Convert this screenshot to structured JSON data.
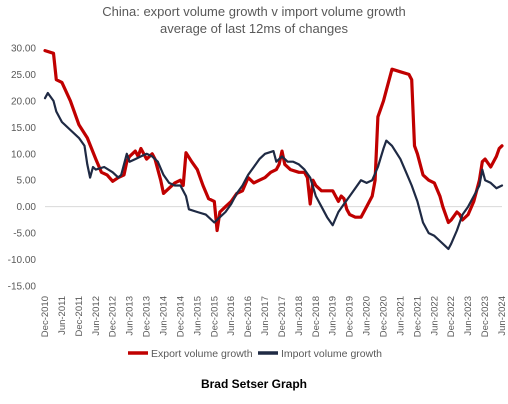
{
  "chart_data": {
    "type": "line",
    "title_line1": "China: export volume growth v import volume growth",
    "title_line2": "average of last 12ms of changes",
    "xlabel": "",
    "ylabel": "",
    "ylim": [
      -15,
      30
    ],
    "y_ticks": [
      "30.00",
      "25.00",
      "20.00",
      "15.00",
      "10.00",
      "5.00",
      "0.00",
      "-5.00",
      "-10.00",
      "-15.00"
    ],
    "y_tick_values": [
      30,
      25,
      20,
      15,
      10,
      5,
      0,
      -5,
      -10,
      -15
    ],
    "x_start": "Dec-2010",
    "x_end": "Jun-2024",
    "x_ticks": [
      "Dec-2010",
      "Jun-2011",
      "Dec-2011",
      "Jun-2012",
      "Dec-2012",
      "Jun-2013",
      "Dec-2013",
      "Jun-2014",
      "Dec-2014",
      "Jun-2015",
      "Dec-2015",
      "Jun-2016",
      "Dec-2016",
      "Jun-2017",
      "Dec-2017",
      "Jun-2018",
      "Dec-2018",
      "Jun-2019",
      "Dec-2019",
      "Jun-2020",
      "Dec-2020",
      "Jun-2021",
      "Dec-2021",
      "Jun-2022",
      "Dec-2022",
      "Jun-2023",
      "Dec-2023",
      "Jun-2024"
    ],
    "grid": false,
    "legend_position": "bottom",
    "series": [
      {
        "name": "Export volume growth",
        "color": "#C00000",
        "points": [
          [
            "Dec-2010",
            29.5
          ],
          [
            "Mar-2011",
            29.0
          ],
          [
            "Apr-2011",
            24.0
          ],
          [
            "Jun-2011",
            23.5
          ],
          [
            "Sep-2011",
            20.0
          ],
          [
            "Dec-2011",
            15.5
          ],
          [
            "Mar-2012",
            13.0
          ],
          [
            "Jun-2012",
            9.0
          ],
          [
            "Aug-2012",
            6.5
          ],
          [
            "Oct-2012",
            6.0
          ],
          [
            "Dec-2012",
            4.8
          ],
          [
            "Feb-2013",
            5.5
          ],
          [
            "Apr-2013",
            6.0
          ],
          [
            "May-2013",
            8.5
          ],
          [
            "Jun-2013",
            9.5
          ],
          [
            "Aug-2013",
            10.5
          ],
          [
            "Sep-2013",
            9.5
          ],
          [
            "Oct-2013",
            11.0
          ],
          [
            "Dec-2013",
            9.0
          ],
          [
            "Feb-2014",
            10.0
          ],
          [
            "Mar-2014",
            9.0
          ],
          [
            "May-2014",
            5.0
          ],
          [
            "Jun-2014",
            2.5
          ],
          [
            "Aug-2014",
            3.5
          ],
          [
            "Oct-2014",
            4.5
          ],
          [
            "Dec-2014",
            5.0
          ],
          [
            "Jan-2015",
            4.0
          ],
          [
            "Feb-2015",
            10.2
          ],
          [
            "Apr-2015",
            8.5
          ],
          [
            "Jun-2015",
            7.0
          ],
          [
            "Aug-2015",
            4.0
          ],
          [
            "Oct-2015",
            1.5
          ],
          [
            "Dec-2015",
            1.0
          ],
          [
            "Jan-2016",
            -4.5
          ],
          [
            "Feb-2016",
            -1.0
          ],
          [
            "Apr-2016",
            0.0
          ],
          [
            "Jun-2016",
            1.0
          ],
          [
            "Aug-2016",
            2.5
          ],
          [
            "Oct-2016",
            3.0
          ],
          [
            "Dec-2016",
            5.5
          ],
          [
            "Feb-2017",
            4.5
          ],
          [
            "Apr-2017",
            5.0
          ],
          [
            "Jun-2017",
            5.5
          ],
          [
            "Aug-2017",
            6.5
          ],
          [
            "Oct-2017",
            7.0
          ],
          [
            "Nov-2017",
            8.0
          ],
          [
            "Dec-2017",
            10.5
          ],
          [
            "Jan-2018",
            8.0
          ],
          [
            "Mar-2018",
            7.0
          ],
          [
            "Jun-2018",
            6.5
          ],
          [
            "Aug-2018",
            6.5
          ],
          [
            "Sep-2018",
            5.5
          ],
          [
            "Oct-2018",
            0.5
          ],
          [
            "Nov-2018",
            5.0
          ],
          [
            "Dec-2018",
            4.0
          ],
          [
            "Feb-2019",
            3.0
          ],
          [
            "Apr-2019",
            3.0
          ],
          [
            "Jun-2019",
            3.0
          ],
          [
            "Aug-2019",
            1.0
          ],
          [
            "Sep-2019",
            2.0
          ],
          [
            "Oct-2019",
            1.5
          ],
          [
            "Nov-2019",
            -0.5
          ],
          [
            "Dec-2019",
            -1.5
          ],
          [
            "Feb-2020",
            -2.0
          ],
          [
            "Apr-2020",
            -2.0
          ],
          [
            "Jun-2020",
            0.0
          ],
          [
            "Aug-2020",
            2.0
          ],
          [
            "Sep-2020",
            5.0
          ],
          [
            "Oct-2020",
            17.0
          ],
          [
            "Dec-2020",
            20.0
          ],
          [
            "Jan-2021",
            22.0
          ],
          [
            "Mar-2021",
            26.0
          ],
          [
            "Jun-2021",
            25.5
          ],
          [
            "Sep-2021",
            25.0
          ],
          [
            "Oct-2021",
            24.0
          ],
          [
            "Nov-2021",
            11.5
          ],
          [
            "Dec-2021",
            10.0
          ],
          [
            "Feb-2022",
            6.0
          ],
          [
            "Apr-2022",
            5.0
          ],
          [
            "Jun-2022",
            4.5
          ],
          [
            "Aug-2022",
            2.0
          ],
          [
            "Sep-2022",
            0.0
          ],
          [
            "Nov-2022",
            -3.0
          ],
          [
            "Dec-2022",
            -2.5
          ],
          [
            "Feb-2023",
            -1.0
          ],
          [
            "Mar-2023",
            -1.5
          ],
          [
            "Apr-2023",
            -2.5
          ],
          [
            "Jun-2023",
            -1.5
          ],
          [
            "Aug-2023",
            1.0
          ],
          [
            "Oct-2023",
            5.0
          ],
          [
            "Nov-2023",
            8.5
          ],
          [
            "Dec-2023",
            9.0
          ],
          [
            "Feb-2024",
            7.5
          ],
          [
            "Apr-2024",
            9.5
          ],
          [
            "May-2024",
            11.0
          ],
          [
            "Jun-2024",
            11.5
          ]
        ]
      },
      {
        "name": "Import volume growth",
        "color": "#1F2A44",
        "points": [
          [
            "Dec-2010",
            20.5
          ],
          [
            "Jan-2011",
            21.5
          ],
          [
            "Mar-2011",
            20.0
          ],
          [
            "Apr-2011",
            18.0
          ],
          [
            "Jun-2011",
            16.0
          ],
          [
            "Sep-2011",
            14.5
          ],
          [
            "Dec-2011",
            13.0
          ],
          [
            "Feb-2012",
            11.5
          ],
          [
            "Mar-2012",
            8.0
          ],
          [
            "Apr-2012",
            5.5
          ],
          [
            "May-2012",
            7.5
          ],
          [
            "Jun-2012",
            7.0
          ],
          [
            "Sep-2012",
            7.5
          ],
          [
            "Dec-2012",
            6.5
          ],
          [
            "Feb-2013",
            5.5
          ],
          [
            "Mar-2013",
            6.0
          ],
          [
            "May-2013",
            10.0
          ],
          [
            "Jun-2013",
            8.5
          ],
          [
            "Aug-2013",
            9.0
          ],
          [
            "Oct-2013",
            9.5
          ],
          [
            "Dec-2013",
            10.0
          ],
          [
            "Feb-2014",
            9.5
          ],
          [
            "Apr-2014",
            8.5
          ],
          [
            "Jun-2014",
            6.0
          ],
          [
            "Aug-2014",
            4.5
          ],
          [
            "Oct-2014",
            4.0
          ],
          [
            "Dec-2014",
            4.0
          ],
          [
            "Feb-2015",
            2.0
          ],
          [
            "Mar-2015",
            -0.5
          ],
          [
            "Jun-2015",
            -1.0
          ],
          [
            "Sep-2015",
            -1.5
          ],
          [
            "Dec-2015",
            -3.0
          ],
          [
            "Feb-2016",
            -2.0
          ],
          [
            "Apr-2016",
            -1.0
          ],
          [
            "Jun-2016",
            0.5
          ],
          [
            "Aug-2016",
            2.5
          ],
          [
            "Oct-2016",
            4.0
          ],
          [
            "Dec-2016",
            6.0
          ],
          [
            "Feb-2017",
            7.5
          ],
          [
            "Apr-2017",
            9.0
          ],
          [
            "Jun-2017",
            10.0
          ],
          [
            "Sep-2017",
            10.5
          ],
          [
            "Oct-2017",
            8.5
          ],
          [
            "Dec-2017",
            9.5
          ],
          [
            "Feb-2018",
            8.5
          ],
          [
            "Apr-2018",
            8.5
          ],
          [
            "Jun-2018",
            8.0
          ],
          [
            "Aug-2018",
            7.0
          ],
          [
            "Oct-2018",
            5.5
          ],
          [
            "Dec-2018",
            2.0
          ],
          [
            "Feb-2019",
            0.0
          ],
          [
            "Apr-2019",
            -2.0
          ],
          [
            "Jun-2019",
            -3.5
          ],
          [
            "Aug-2019",
            -1.0
          ],
          [
            "Oct-2019",
            0.5
          ],
          [
            "Dec-2019",
            2.0
          ],
          [
            "Feb-2020",
            3.5
          ],
          [
            "Apr-2020",
            5.0
          ],
          [
            "Jun-2020",
            4.5
          ],
          [
            "Aug-2020",
            5.0
          ],
          [
            "Oct-2020",
            7.5
          ],
          [
            "Dec-2020",
            11.0
          ],
          [
            "Jan-2021",
            12.5
          ],
          [
            "Mar-2021",
            11.5
          ],
          [
            "Jun-2021",
            9.0
          ],
          [
            "Aug-2021",
            6.5
          ],
          [
            "Oct-2021",
            4.0
          ],
          [
            "Dec-2021",
            1.0
          ],
          [
            "Feb-2022",
            -3.0
          ],
          [
            "Apr-2022",
            -5.0
          ],
          [
            "Jun-2022",
            -5.5
          ],
          [
            "Aug-2022",
            -6.5
          ],
          [
            "Oct-2022",
            -7.5
          ],
          [
            "Nov-2022",
            -8.0
          ],
          [
            "Dec-2022",
            -7.0
          ],
          [
            "Feb-2023",
            -4.5
          ],
          [
            "Apr-2023",
            -1.5
          ],
          [
            "Jun-2023",
            0.0
          ],
          [
            "Aug-2023",
            2.0
          ],
          [
            "Oct-2023",
            4.0
          ],
          [
            "Nov-2023",
            7.0
          ],
          [
            "Dec-2023",
            5.0
          ],
          [
            "Feb-2024",
            4.5
          ],
          [
            "Apr-2024",
            3.5
          ],
          [
            "Jun-2024",
            4.0
          ]
        ]
      }
    ]
  },
  "credit": "Brad Setser Graph"
}
